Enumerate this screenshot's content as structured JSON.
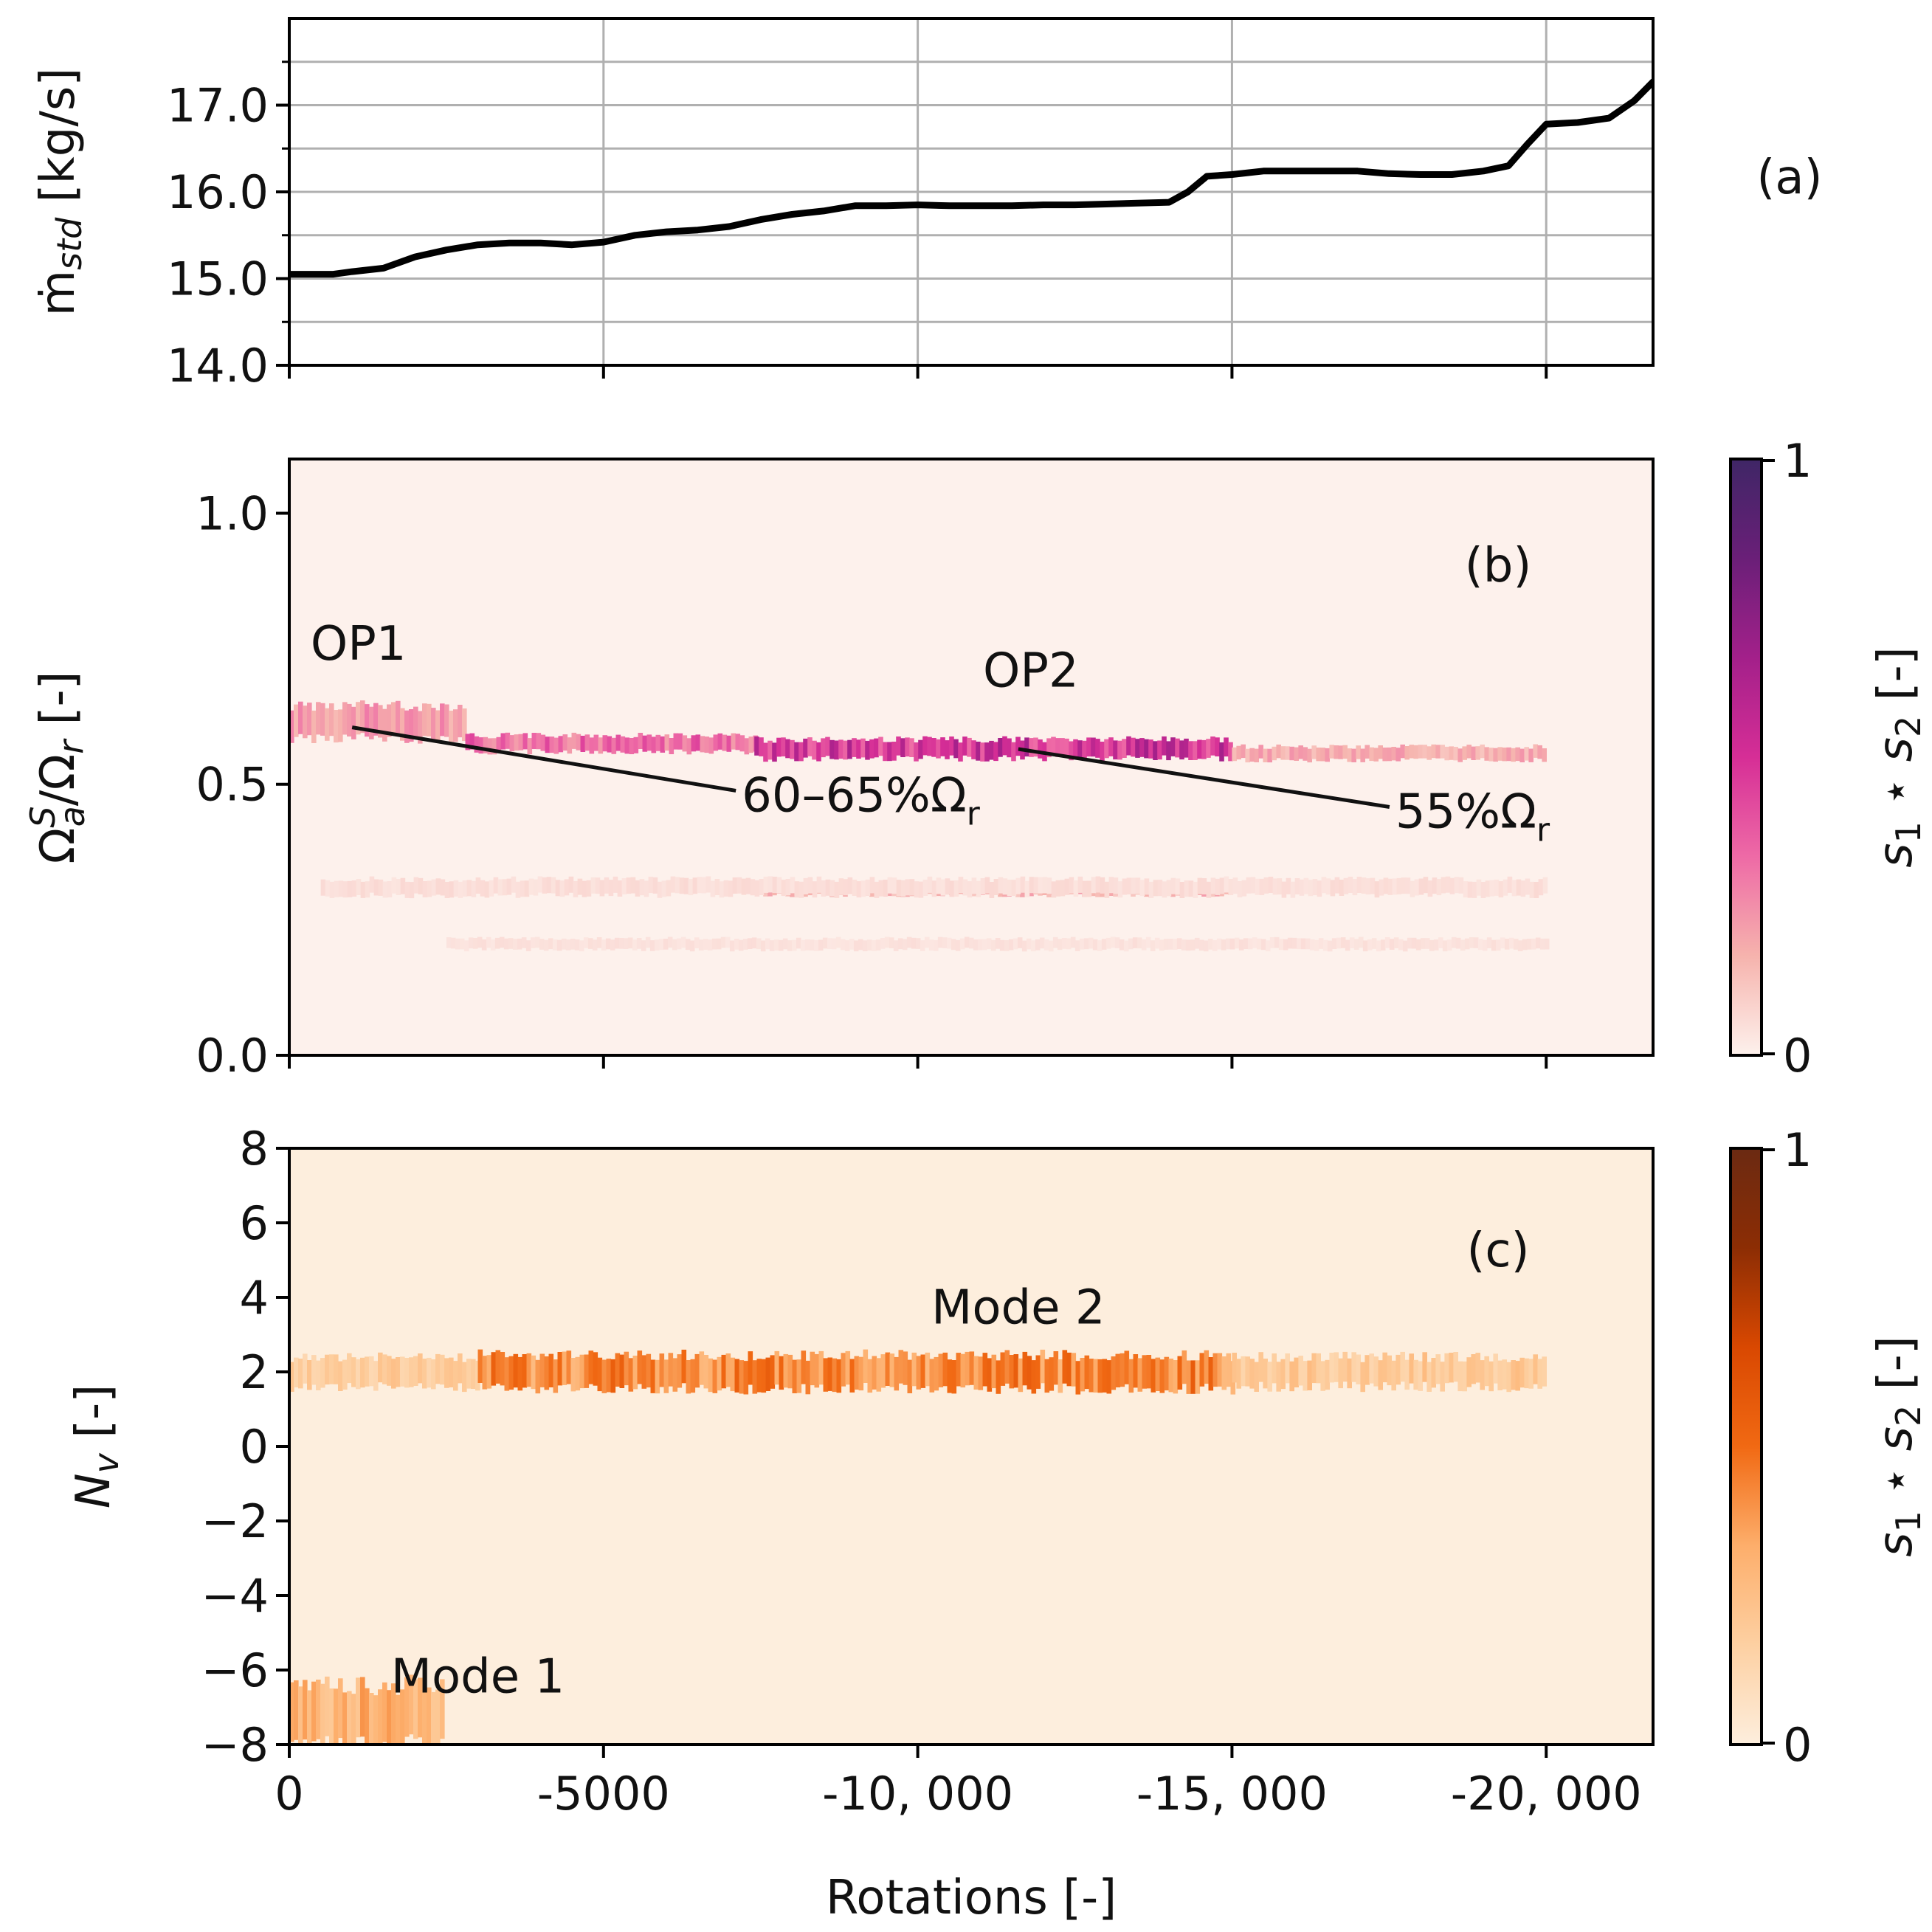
{
  "chart_data": [
    {
      "panel": "(a)",
      "type": "line",
      "ylabel": "ṁ_std [kg/s]",
      "ylabel_main": "ṁ",
      "ylabel_sub": "std",
      "ylabel_unit": " [kg/s]",
      "xlim": [
        0,
        -21700
      ],
      "ylim": [
        14.0,
        18.0
      ],
      "yticks": [
        "14.0",
        "15.0",
        "16.0",
        "17.0"
      ],
      "ytick_values": [
        14.0,
        15.0,
        16.0,
        17.0
      ],
      "minor_yticks": [
        14.5,
        15.5,
        16.5,
        17.5
      ],
      "grid": true,
      "series": [
        {
          "color": "#000000",
          "x": [
            0,
            -300,
            -700,
            -1000,
            -1500,
            -2000,
            -2500,
            -3000,
            -3500,
            -4000,
            -4500,
            -5000,
            -5500,
            -6000,
            -6500,
            -7000,
            -7500,
            -8000,
            -8500,
            -9000,
            -9500,
            -10000,
            -10500,
            -11000,
            -11500,
            -12000,
            -12500,
            -13000,
            -13500,
            -14000,
            -14300,
            -14600,
            -15000,
            -15500,
            -16000,
            -16500,
            -17000,
            -17500,
            -18000,
            -18500,
            -19000,
            -19400,
            -19700,
            -20000,
            -20500,
            -21000,
            -21400,
            -21700
          ],
          "y": [
            15.05,
            15.05,
            15.05,
            15.08,
            15.12,
            15.25,
            15.33,
            15.39,
            15.41,
            15.41,
            15.39,
            15.42,
            15.5,
            15.54,
            15.56,
            15.6,
            15.68,
            15.74,
            15.78,
            15.84,
            15.84,
            15.85,
            15.84,
            15.84,
            15.84,
            15.85,
            15.85,
            15.86,
            15.87,
            15.88,
            16.0,
            16.18,
            16.2,
            16.24,
            16.24,
            16.24,
            16.24,
            16.21,
            16.2,
            16.2,
            16.24,
            16.3,
            16.55,
            16.78,
            16.8,
            16.85,
            17.05,
            17.27
          ]
        }
      ]
    },
    {
      "panel": "(b)",
      "type": "heatmap",
      "ylabel": "Ω_a^S/Ω_r [-]",
      "xlim": [
        0,
        -21700
      ],
      "ylim": [
        0.0,
        1.1
      ],
      "yticks": [
        "0.0",
        "0.5",
        "1.0"
      ],
      "ytick_values": [
        0.0,
        0.5,
        1.0
      ],
      "colormap": [
        "#fdf1ec",
        "#f6b3ad",
        "#ee6aa6",
        "#d62e96",
        "#a3208a",
        "#6a1f78",
        "#3f2666"
      ],
      "colorbar_label": "s₁ ⋆ s₂ [-]",
      "colorbar_ticks": [
        "0",
        "1"
      ],
      "bands": [
        {
          "name": "OP1",
          "x_start": 0,
          "x_end": -2800,
          "y_center": 0.615,
          "y_width": 0.06,
          "intensity": 0.22
        },
        {
          "name": "OP1-tail",
          "x_start": -2800,
          "x_end": -7400,
          "y_center": 0.575,
          "y_width": 0.03,
          "intensity": 0.33
        },
        {
          "name": "OP2",
          "x_start": -7400,
          "x_end": -15000,
          "y_center": 0.565,
          "y_width": 0.035,
          "intensity": 0.5
        },
        {
          "name": "OP2-tail",
          "x_start": -15000,
          "x_end": -20000,
          "y_center": 0.557,
          "y_width": 0.025,
          "intensity": 0.18
        },
        {
          "name": "harmonic",
          "x_start": -7400,
          "x_end": -15000,
          "y_center": 0.305,
          "y_width": 0.02,
          "intensity": 0.17
        },
        {
          "name": "harmonic-faint",
          "x_start": -500,
          "x_end": -20000,
          "y_center": 0.31,
          "y_width": 0.03,
          "intensity": 0.05
        },
        {
          "name": "low-faint",
          "x_start": -2500,
          "x_end": -20000,
          "y_center": 0.205,
          "y_width": 0.02,
          "intensity": 0.04
        }
      ],
      "annotations": [
        {
          "text": "OP1",
          "x": -1100,
          "y": 0.73
        },
        {
          "text": "OP2",
          "x": -11800,
          "y": 0.68
        },
        {
          "text": "60–65%Ω",
          "sub": "r",
          "x": -7200,
          "y": 0.45,
          "arrow_to": [
            -1000,
            0.605
          ]
        },
        {
          "text": "55%Ω",
          "sub": "r",
          "x": -17600,
          "y": 0.42,
          "arrow_to": [
            -11600,
            0.565
          ]
        }
      ]
    },
    {
      "panel": "(c)",
      "type": "heatmap",
      "xlabel": "Rotations [-]",
      "ylabel": "N_v [-]",
      "xlim": [
        0,
        -21700
      ],
      "ylim": [
        -8,
        8
      ],
      "yticks": [
        "−8",
        "−6",
        "−4",
        "−2",
        "0",
        "2",
        "4",
        "6",
        "8"
      ],
      "ytick_values": [
        -8,
        -6,
        -4,
        -2,
        0,
        2,
        4,
        6,
        8
      ],
      "xticks": [
        "0",
        "-5000",
        "-10, 000",
        "-15, 000",
        "-20, 000"
      ],
      "xtick_values": [
        0,
        -5000,
        -10000,
        -15000,
        -20000
      ],
      "colormap": [
        "#fdeedd",
        "#fdd0a2",
        "#fdae6b",
        "#f16913",
        "#d94801",
        "#8c2d04",
        "#6b2a12"
      ],
      "colorbar_label": "s₁ ⋆ s₂ [-]",
      "colorbar_ticks": [
        "0",
        "1"
      ],
      "bands": [
        {
          "name": "Mode 2",
          "x_start": 0,
          "x_end": -3000,
          "y_center": 2.0,
          "y_width": 0.8,
          "intensity": 0.18
        },
        {
          "name": "Mode 2 strong",
          "x_start": -3000,
          "x_end": -15000,
          "y_center": 2.0,
          "y_width": 0.9,
          "intensity": 0.42
        },
        {
          "name": "Mode 2 tail",
          "x_start": -15000,
          "x_end": -20000,
          "y_center": 2.0,
          "y_width": 0.8,
          "intensity": 0.2
        },
        {
          "name": "Mode 1",
          "x_start": 0,
          "x_end": -2400,
          "y_center": -7.2,
          "y_width": 1.6,
          "intensity": 0.3
        }
      ],
      "annotations": [
        {
          "text": "Mode 2",
          "x": -11600,
          "y": 3.3
        },
        {
          "text": "Mode 1",
          "x": -3000,
          "y": -6.6
        }
      ]
    }
  ]
}
